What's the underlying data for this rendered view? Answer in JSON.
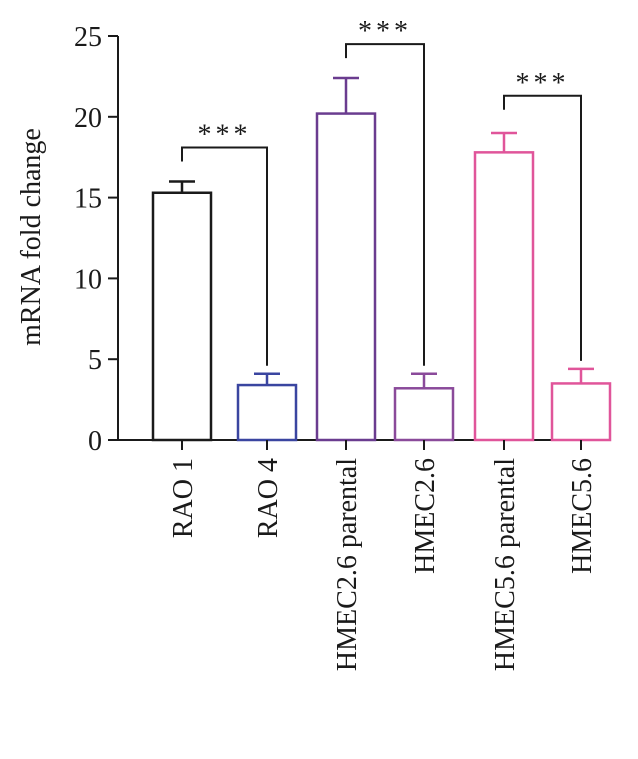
{
  "chart_data": {
    "type": "bar",
    "title": "",
    "xlabel": "",
    "ylabel": "mRNA fold change",
    "ylim": [
      0,
      25
    ],
    "yticks": [
      0,
      5,
      10,
      15,
      20,
      25
    ],
    "grid": false,
    "categories": [
      "RAO 1",
      "RAO 4",
      "HMEC2.6 parental",
      "HMEC2.6",
      "HMEC5.6 parental",
      "HMEC5.6"
    ],
    "values": [
      15.3,
      3.4,
      20.2,
      3.2,
      17.8,
      3.5
    ],
    "errors": [
      0.7,
      0.7,
      2.2,
      0.9,
      1.2,
      0.9
    ],
    "bar_colors": [
      "#1a1a1a",
      "#3a45a0",
      "#6a3c8f",
      "#8a4a9a",
      "#e0559a",
      "#e0559a"
    ],
    "significance": [
      {
        "from": 0,
        "to": 1,
        "label": "***",
        "y": 18.1
      },
      {
        "from": 2,
        "to": 3,
        "label": "***",
        "y": 24.5
      },
      {
        "from": 4,
        "to": 5,
        "label": "***",
        "y": 21.3
      }
    ]
  }
}
